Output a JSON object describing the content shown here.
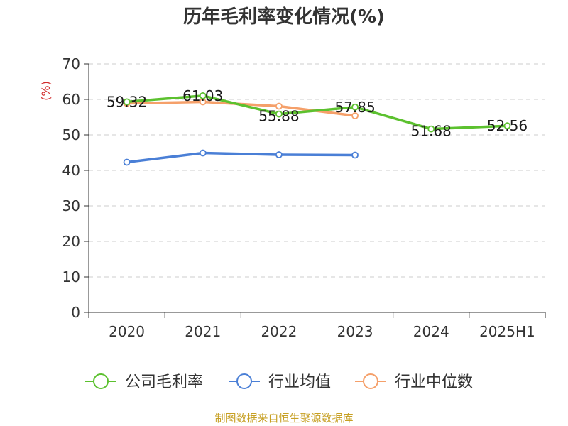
{
  "chart_data": {
    "type": "line",
    "title": "历年毛利率变化情况(%)",
    "unit": "(%)",
    "categories": [
      "2020",
      "2021",
      "2022",
      "2023",
      "2024",
      "2025H1"
    ],
    "yticks": [
      0,
      10,
      20,
      30,
      40,
      50,
      60,
      70
    ],
    "ylim": [
      0,
      70
    ],
    "grid": true,
    "legend_position": "bottom",
    "series": [
      {
        "name": "公司毛利率",
        "color": "#5cc12f",
        "values": [
          59.32,
          61.03,
          55.88,
          57.85,
          51.68,
          52.56
        ],
        "labels": [
          "59.32",
          "61.03",
          "55.88",
          "57.85",
          "51.68",
          "52.56"
        ]
      },
      {
        "name": "行业均值",
        "color": "#4a7fd6",
        "values": [
          42.3,
          44.9,
          44.4,
          44.3,
          null,
          null
        ]
      },
      {
        "name": "行业中位数",
        "color": "#f5a06a",
        "values": [
          58.9,
          59.3,
          58.1,
          55.4,
          null,
          null
        ]
      }
    ],
    "source": "制图数据来自恒生聚源数据库"
  }
}
